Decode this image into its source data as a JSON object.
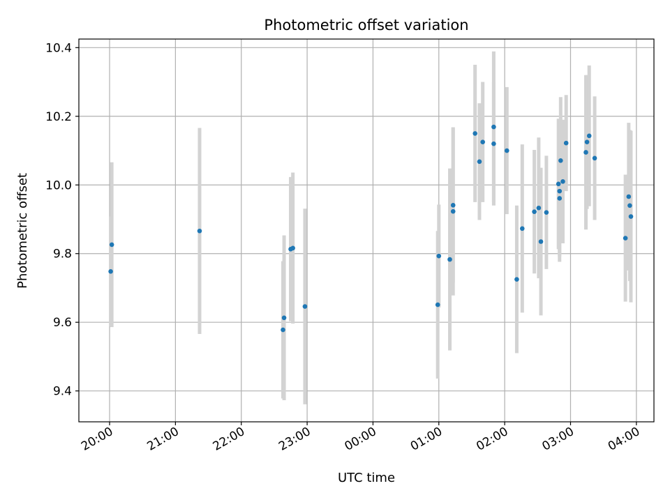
{
  "chart_data": {
    "type": "scatter",
    "title": "Photometric offset variation",
    "xlabel": "UTC time",
    "ylabel": "Photometric offset",
    "grid": true,
    "ylim": [
      9.31,
      10.425
    ],
    "xlim": [
      "19:32",
      "04:16"
    ],
    "x_ticks": [
      "20:00",
      "21:00",
      "22:00",
      "23:00",
      "00:00",
      "01:00",
      "02:00",
      "03:00",
      "04:00"
    ],
    "y_ticks": [
      "9.4",
      "9.6",
      "9.8",
      "10.0",
      "10.2",
      "10.4"
    ],
    "colors": {
      "point": "#1f77b4",
      "errorbar": "#d3d3d3"
    },
    "points": [
      {
        "x": "20:01",
        "y": 9.748,
        "err": 0.16
      },
      {
        "x": "20:02",
        "y": 9.826,
        "err": 0.24
      },
      {
        "x": "21:22",
        "y": 9.866,
        "err": 0.3
      },
      {
        "x": "22:38",
        "y": 9.578,
        "err": 0.2
      },
      {
        "x": "22:39",
        "y": 9.613,
        "err": 0.24
      },
      {
        "x": "22:45",
        "y": 9.813,
        "err": 0.21
      },
      {
        "x": "22:47",
        "y": 9.816,
        "err": 0.22
      },
      {
        "x": "22:58",
        "y": 9.646,
        "err": 0.285
      },
      {
        "x": "00:59",
        "y": 9.651,
        "err": 0.215
      },
      {
        "x": "01:00",
        "y": 9.793,
        "err": 0.15
      },
      {
        "x": "01:10",
        "y": 9.783,
        "err": 0.265
      },
      {
        "x": "01:13",
        "y": 9.923,
        "err": 0.245
      },
      {
        "x": "01:13",
        "y": 9.941,
        "err": 0.225
      },
      {
        "x": "01:33",
        "y": 10.15,
        "err": 0.2
      },
      {
        "x": "01:37",
        "y": 10.068,
        "err": 0.17
      },
      {
        "x": "01:40",
        "y": 10.125,
        "err": 0.175
      },
      {
        "x": "01:50",
        "y": 10.12,
        "err": 0.18
      },
      {
        "x": "01:50",
        "y": 10.169,
        "err": 0.22
      },
      {
        "x": "02:02",
        "y": 10.1,
        "err": 0.185
      },
      {
        "x": "02:11",
        "y": 9.725,
        "err": 0.215
      },
      {
        "x": "02:16",
        "y": 9.873,
        "err": 0.245
      },
      {
        "x": "02:27",
        "y": 9.922,
        "err": 0.18
      },
      {
        "x": "02:31",
        "y": 9.933,
        "err": 0.205
      },
      {
        "x": "02:33",
        "y": 9.835,
        "err": 0.215
      },
      {
        "x": "02:38",
        "y": 9.92,
        "err": 0.165
      },
      {
        "x": "02:49",
        "y": 10.003,
        "err": 0.19
      },
      {
        "x": "02:50",
        "y": 9.961,
        "err": 0.185
      },
      {
        "x": "02:50",
        "y": 9.982,
        "err": 0.19
      },
      {
        "x": "02:51",
        "y": 10.071,
        "err": 0.185
      },
      {
        "x": "02:53",
        "y": 10.01,
        "err": 0.18
      },
      {
        "x": "02:56",
        "y": 10.122,
        "err": 0.14
      },
      {
        "x": "03:14",
        "y": 10.095,
        "err": 0.225
      },
      {
        "x": "03:15",
        "y": 10.125,
        "err": 0.195
      },
      {
        "x": "03:17",
        "y": 10.143,
        "err": 0.205
      },
      {
        "x": "03:22",
        "y": 10.078,
        "err": 0.18
      },
      {
        "x": "03:50",
        "y": 9.845,
        "err": 0.185
      },
      {
        "x": "03:53",
        "y": 9.966,
        "err": 0.215
      },
      {
        "x": "03:54",
        "y": 9.94,
        "err": 0.22
      },
      {
        "x": "03:55",
        "y": 9.908,
        "err": 0.25
      }
    ]
  }
}
